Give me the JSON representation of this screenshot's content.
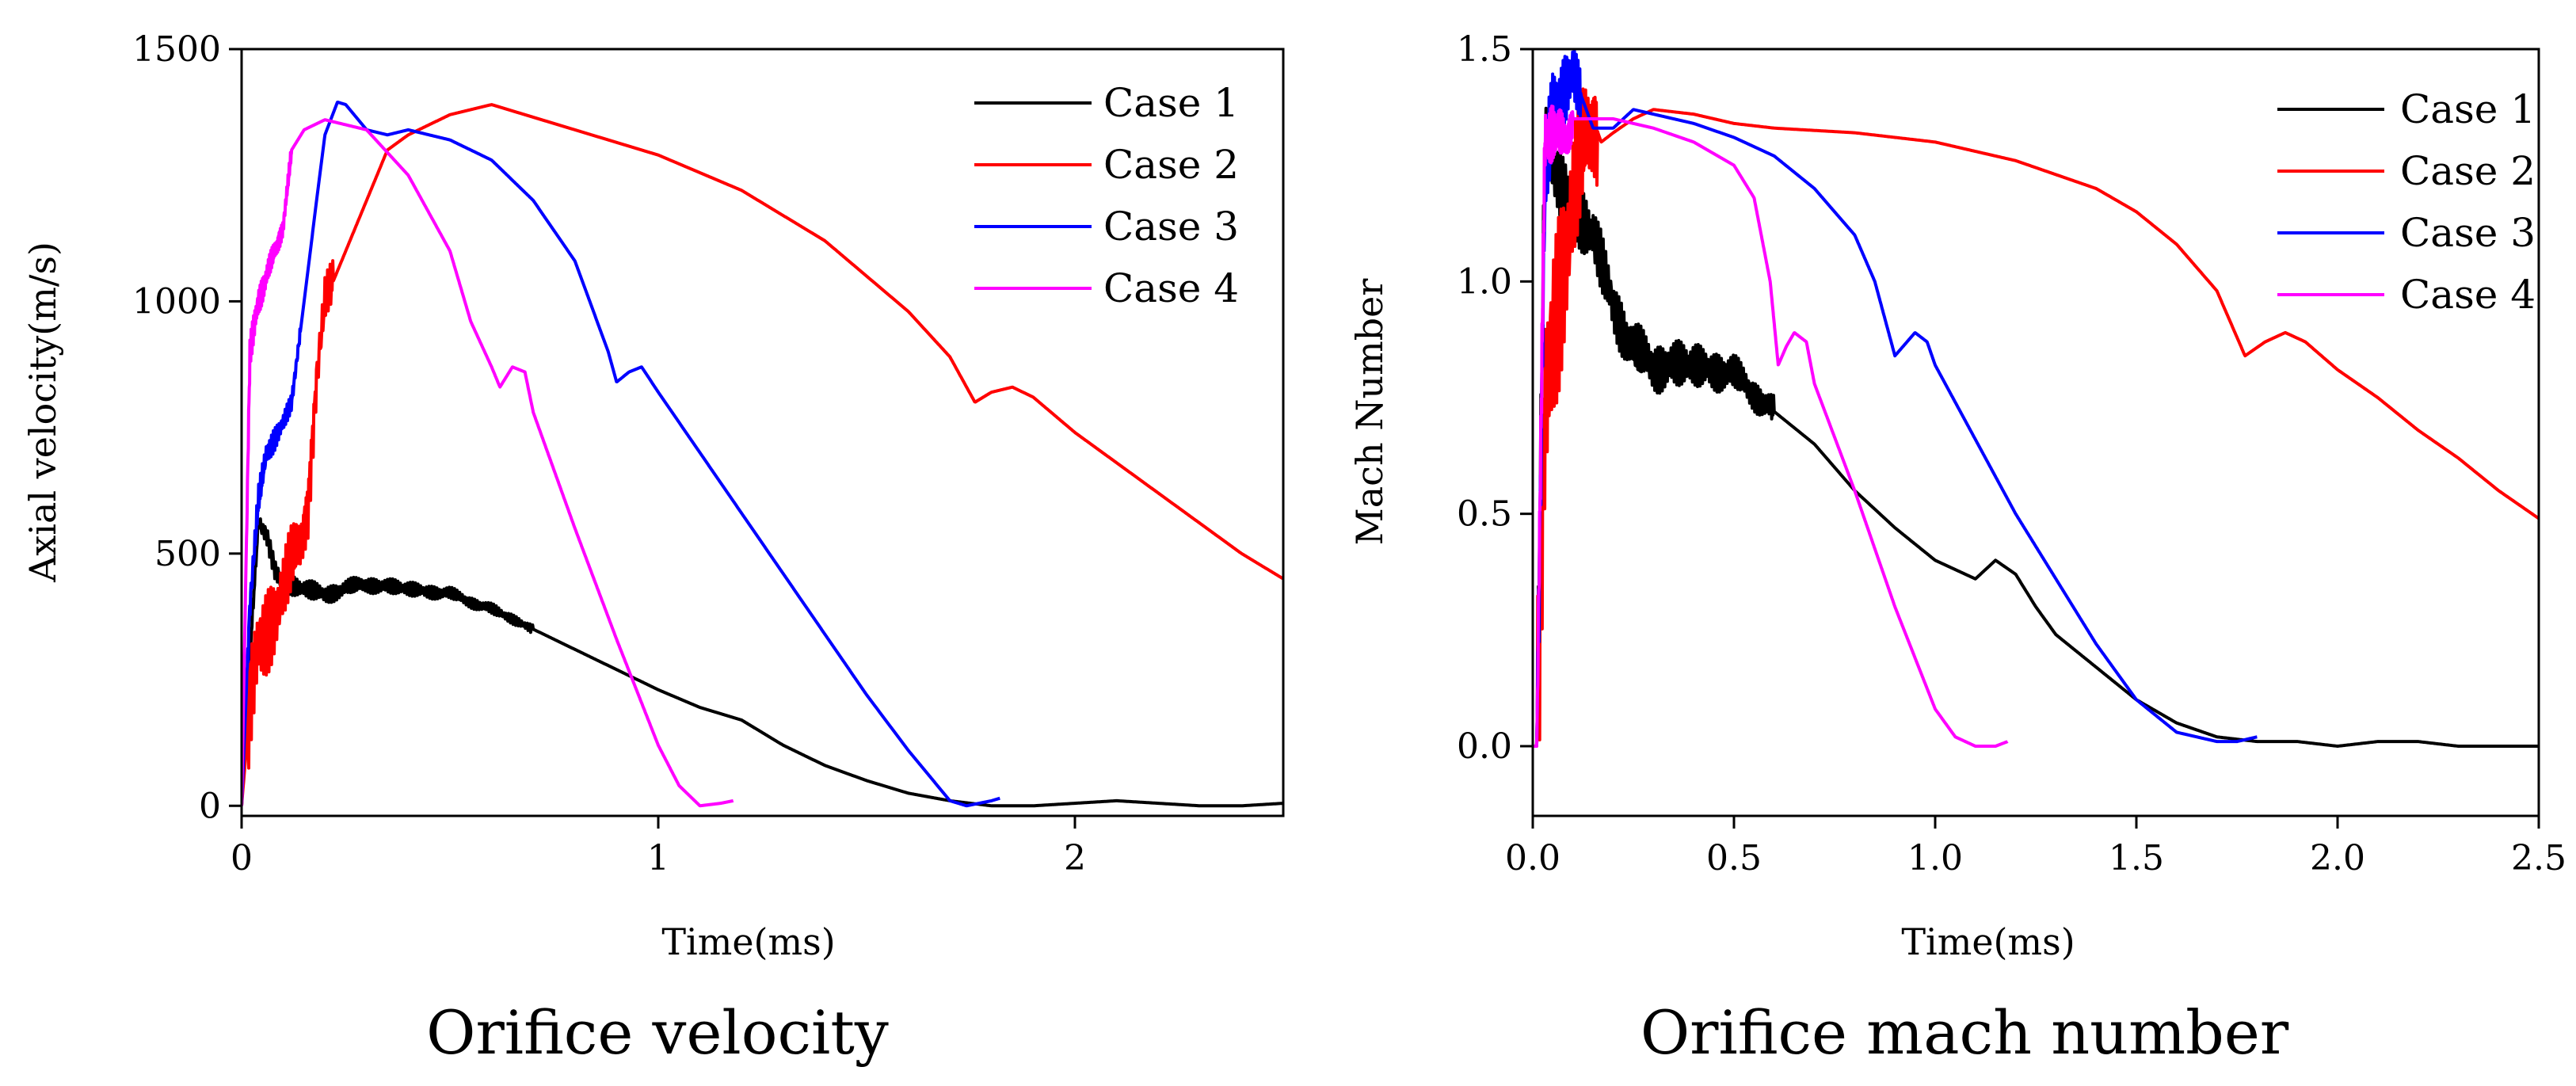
{
  "figure": {
    "captions": [
      "Orifice velocity",
      "Orifice mach number"
    ]
  },
  "chart_data": [
    {
      "type": "line",
      "title": "Orifice velocity",
      "xlabel": "Time(ms)",
      "ylabel": "Axial velocity(m/s)",
      "xlim": [
        0,
        2.5
      ],
      "ylim": [
        -20,
        1500
      ],
      "xticks": [
        0,
        1,
        2
      ],
      "xtick_labels": [
        "0",
        "1",
        "2"
      ],
      "yticks": [
        0,
        500,
        1000,
        1500
      ],
      "ytick_labels": [
        "0",
        "500",
        "1000",
        "1500"
      ],
      "legend_position": "top-right",
      "series": [
        {
          "name": "Case 1",
          "color": "#000000",
          "noise_amp": 25,
          "noise_until": 0.7,
          "x": [
            0,
            0.02,
            0.04,
            0.06,
            0.08,
            0.1,
            0.15,
            0.2,
            0.3,
            0.4,
            0.5,
            0.6,
            0.7,
            0.8,
            0.9,
            1.0,
            1.1,
            1.2,
            1.3,
            1.4,
            1.5,
            1.6,
            1.7,
            1.8,
            1.9,
            2.0,
            2.1,
            2.2,
            2.3,
            2.4,
            2.5
          ],
          "y": [
            0,
            300,
            560,
            540,
            470,
            440,
            430,
            420,
            440,
            430,
            420,
            390,
            350,
            310,
            270,
            230,
            195,
            170,
            120,
            80,
            50,
            25,
            10,
            0,
            0,
            5,
            10,
            5,
            0,
            0,
            5
          ]
        },
        {
          "name": "Case 2",
          "color": "#ff0000",
          "noise_amp": 120,
          "noise_until": 0.22,
          "x": [
            0,
            0.02,
            0.04,
            0.06,
            0.08,
            0.1,
            0.12,
            0.14,
            0.16,
            0.18,
            0.2,
            0.25,
            0.3,
            0.35,
            0.4,
            0.5,
            0.6,
            0.8,
            1.0,
            1.2,
            1.4,
            1.6,
            1.7,
            1.76,
            1.8,
            1.85,
            1.9,
            2.0,
            2.2,
            2.4,
            2.5
          ],
          "y": [
            0,
            200,
            320,
            350,
            380,
            420,
            480,
            520,
            600,
            850,
            1000,
            1100,
            1200,
            1300,
            1330,
            1370,
            1390,
            1340,
            1290,
            1220,
            1120,
            980,
            890,
            800,
            820,
            830,
            810,
            740,
            620,
            500,
            450
          ]
        },
        {
          "name": "Case 3",
          "color": "#0000ff",
          "noise_amp": 40,
          "noise_until": 0.14,
          "x": [
            0,
            0.02,
            0.04,
            0.06,
            0.08,
            0.1,
            0.12,
            0.15,
            0.18,
            0.2,
            0.23,
            0.25,
            0.3,
            0.35,
            0.4,
            0.5,
            0.6,
            0.7,
            0.8,
            0.88,
            0.9,
            0.93,
            0.96,
            1.0,
            1.1,
            1.2,
            1.3,
            1.4,
            1.5,
            1.6,
            1.7,
            1.74,
            1.8,
            1.82
          ],
          "y": [
            0,
            400,
            600,
            700,
            730,
            760,
            800,
            1000,
            1200,
            1330,
            1395,
            1390,
            1340,
            1330,
            1340,
            1320,
            1280,
            1200,
            1080,
            900,
            840,
            860,
            870,
            820,
            700,
            580,
            460,
            340,
            220,
            110,
            10,
            0,
            10,
            15
          ]
        },
        {
          "name": "Case 4",
          "color": "#ff00ff",
          "noise_amp": 40,
          "noise_until": 0.12,
          "x": [
            0,
            0.02,
            0.04,
            0.06,
            0.08,
            0.1,
            0.12,
            0.15,
            0.2,
            0.3,
            0.4,
            0.5,
            0.55,
            0.6,
            0.62,
            0.65,
            0.68,
            0.7,
            0.8,
            0.9,
            1.0,
            1.05,
            1.1,
            1.15,
            1.18
          ],
          "y": [
            0,
            900,
            1000,
            1050,
            1100,
            1150,
            1300,
            1340,
            1360,
            1340,
            1250,
            1100,
            960,
            870,
            830,
            870,
            860,
            780,
            550,
            330,
            120,
            40,
            0,
            5,
            10
          ]
        }
      ]
    },
    {
      "type": "line",
      "title": "Orifice mach number",
      "xlabel": "Time(ms)",
      "ylabel": "Mach Number",
      "xlim": [
        0,
        2.5
      ],
      "ylim": [
        -0.15,
        1.5
      ],
      "xticks": [
        0,
        0.5,
        1.0,
        1.5,
        2.0,
        2.5
      ],
      "xtick_labels": [
        "0.0",
        "0.5",
        "1.0",
        "1.5",
        "2.0",
        "2.5"
      ],
      "yticks": [
        0,
        0.5,
        1.0,
        1.5
      ],
      "ytick_labels": [
        "0.0",
        "0.5",
        "1.0",
        "1.5"
      ],
      "legend_position": "top-right",
      "series": [
        {
          "name": "Case 1",
          "color": "#000000",
          "noise_amp": 0.09,
          "noise_until": 0.6,
          "x": [
            0,
            0.01,
            0.03,
            0.05,
            0.08,
            0.1,
            0.15,
            0.2,
            0.25,
            0.3,
            0.4,
            0.5,
            0.6,
            0.7,
            0.8,
            0.9,
            1.0,
            1.1,
            1.15,
            1.2,
            1.25,
            1.3,
            1.4,
            1.5,
            1.6,
            1.7,
            1.8,
            1.9,
            2.0,
            2.1,
            2.2,
            2.3,
            2.4,
            2.5
          ],
          "y": [
            0,
            0.0,
            1.3,
            1.25,
            1.2,
            1.15,
            1.1,
            0.95,
            0.85,
            0.82,
            0.82,
            0.8,
            0.72,
            0.65,
            0.55,
            0.47,
            0.4,
            0.36,
            0.4,
            0.37,
            0.3,
            0.24,
            0.17,
            0.1,
            0.05,
            0.02,
            0.01,
            0.01,
            0.0,
            0.01,
            0.01,
            0.0,
            0.0,
            0.0
          ]
        },
        {
          "name": "Case 2",
          "color": "#ff0000",
          "noise_amp": 0.3,
          "noise_until": 0.16,
          "x": [
            0,
            0.01,
            0.03,
            0.05,
            0.07,
            0.09,
            0.11,
            0.13,
            0.15,
            0.17,
            0.2,
            0.25,
            0.3,
            0.4,
            0.5,
            0.6,
            0.8,
            1.0,
            1.2,
            1.4,
            1.5,
            1.6,
            1.7,
            1.77,
            1.82,
            1.87,
            1.92,
            2.0,
            2.1,
            2.2,
            2.3,
            2.4,
            2.5
          ],
          "y": [
            0,
            0.0,
            0.7,
            0.9,
            1.0,
            1.1,
            1.2,
            1.3,
            1.35,
            1.3,
            1.32,
            1.35,
            1.37,
            1.36,
            1.34,
            1.33,
            1.32,
            1.3,
            1.26,
            1.2,
            1.15,
            1.08,
            0.98,
            0.84,
            0.87,
            0.89,
            0.87,
            0.81,
            0.75,
            0.68,
            0.62,
            0.55,
            0.49
          ]
        },
        {
          "name": "Case 3",
          "color": "#0000ff",
          "noise_amp": 0.15,
          "noise_until": 0.12,
          "x": [
            0,
            0.01,
            0.03,
            0.05,
            0.08,
            0.1,
            0.12,
            0.15,
            0.2,
            0.25,
            0.3,
            0.4,
            0.5,
            0.6,
            0.7,
            0.8,
            0.85,
            0.9,
            0.92,
            0.95,
            0.98,
            1.0,
            1.1,
            1.2,
            1.3,
            1.4,
            1.5,
            1.6,
            1.7,
            1.75,
            1.8
          ],
          "y": [
            0,
            0.0,
            1.2,
            1.35,
            1.42,
            1.45,
            1.4,
            1.33,
            1.33,
            1.37,
            1.36,
            1.34,
            1.31,
            1.27,
            1.2,
            1.1,
            1.0,
            0.84,
            0.86,
            0.89,
            0.87,
            0.82,
            0.66,
            0.5,
            0.36,
            0.22,
            0.1,
            0.03,
            0.01,
            0.01,
            0.02
          ]
        },
        {
          "name": "Case 4",
          "color": "#ff00ff",
          "noise_amp": 0.1,
          "noise_until": 0.1,
          "x": [
            0,
            0.01,
            0.03,
            0.05,
            0.08,
            0.1,
            0.15,
            0.2,
            0.3,
            0.4,
            0.5,
            0.55,
            0.59,
            0.61,
            0.63,
            0.65,
            0.68,
            0.7,
            0.8,
            0.9,
            1.0,
            1.05,
            1.1,
            1.15,
            1.18
          ],
          "y": [
            0,
            0.0,
            1.3,
            1.33,
            1.3,
            1.35,
            1.35,
            1.35,
            1.33,
            1.3,
            1.25,
            1.18,
            1.0,
            0.82,
            0.86,
            0.89,
            0.87,
            0.78,
            0.55,
            0.3,
            0.08,
            0.02,
            0.0,
            0.0,
            0.01
          ]
        }
      ]
    }
  ]
}
